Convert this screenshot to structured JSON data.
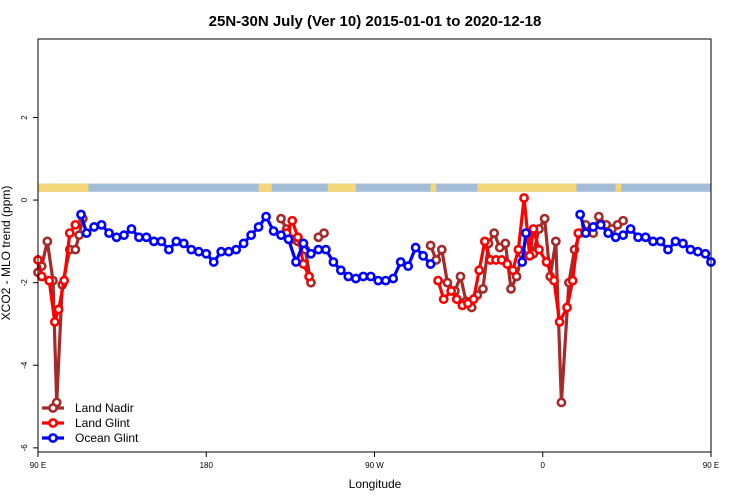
{
  "chart_data": {
    "type": "line",
    "title": "25N-30N July (Ver 10)   2015-01-01 to 2020-12-18",
    "xlabel": "Longitude",
    "ylabel": "XCO2 - MLO trend (ppm)",
    "xlim": [
      90,
      450
    ],
    "ylim": [
      -6.1,
      3.9
    ],
    "x_ticks": [
      {
        "value": 90,
        "label": "90 E"
      },
      {
        "value": 180,
        "label": "180"
      },
      {
        "value": 270,
        "label": "90 W"
      },
      {
        "value": 360,
        "label": "0"
      },
      {
        "value": 450,
        "label": "90 E"
      },
      {
        "value": 540,
        "label": "180"
      }
    ],
    "y_ticks": [
      {
        "value": -6,
        "label": "-6"
      },
      {
        "value": -4,
        "label": "-4"
      },
      {
        "value": -2,
        "label": "-2"
      },
      {
        "value": 0,
        "label": "0"
      },
      {
        "value": 2,
        "label": "2"
      }
    ],
    "legend_position": "bottom-left",
    "land_ocean_strip": {
      "y_range": [
        0.2,
        0.4
      ],
      "land_color": "#f5d67a",
      "ocean_color": "#a3bcd8",
      "land_segments": [
        [
          90,
          117
        ],
        [
          208,
          215
        ],
        [
          245,
          260
        ],
        [
          300,
          303
        ],
        [
          325,
          378
        ],
        [
          399,
          402
        ]
      ]
    },
    "series": [
      {
        "name": "Land Nadir",
        "color": "#a52a2a",
        "segments": [
          {
            "x": [
              90,
              92,
              95,
              98,
              100,
              103,
              107,
              110,
              112,
              114
            ],
            "y": [
              -1.75,
              -1.6,
              -1.0,
              -1.95,
              -4.9,
              -2.05,
              -1.2,
              -1.2,
              -0.85,
              -0.45
            ]
          },
          {
            "x": [
              220,
              223,
              226,
              229,
              233,
              236
            ],
            "y": [
              -0.45,
              -0.7,
              -0.95,
              -1.0,
              -1.2,
              -2.0
            ]
          },
          {
            "x": [
              240,
              243
            ],
            "y": [
              -0.9,
              -0.8
            ]
          },
          {
            "x": [
              300,
              303,
              306,
              309,
              313,
              316,
              319,
              322,
              325,
              328,
              331,
              334,
              337,
              340,
              343,
              346,
              349,
              352,
              355,
              358,
              361,
              364,
              367,
              370,
              374,
              377,
              380,
              383,
              387,
              390,
              394,
              397,
              400,
              403
            ],
            "y": [
              -1.1,
              -1.45,
              -1.2,
              -2.0,
              -2.2,
              -1.85,
              -2.45,
              -2.6,
              -2.3,
              -2.15,
              -1.05,
              -0.8,
              -1.15,
              -1.05,
              -2.15,
              -1.85,
              -1.3,
              -0.8,
              -1.3,
              -0.7,
              -0.45,
              -1.85,
              -1.0,
              -4.9,
              -2.0,
              -1.2,
              -0.8,
              -0.6,
              -0.8,
              -0.4,
              -0.6,
              -0.7,
              -0.6,
              -0.5
            ]
          }
        ]
      },
      {
        "name": "Land Glint",
        "color": "#ff0000",
        "segments": [
          {
            "x": [
              90,
              92,
              96,
              99,
              101,
              104,
              107,
              110
            ],
            "y": [
              -1.45,
              -1.85,
              -1.95,
              -2.95,
              -2.65,
              -1.95,
              -0.8,
              -0.6
            ]
          },
          {
            "x": [
              223,
              226,
              229,
              232,
              235
            ],
            "y": [
              -0.8,
              -0.5,
              -0.9,
              -1.55,
              -1.85
            ]
          },
          {
            "x": [
              304,
              307,
              311,
              314,
              317,
              320,
              323,
              326,
              329,
              332,
              335,
              338,
              341,
              344,
              347,
              350,
              353,
              355,
              358,
              362,
              366,
              369,
              373,
              376,
              379
            ],
            "y": [
              -1.95,
              -2.4,
              -2.2,
              -2.4,
              -2.55,
              -2.5,
              -2.4,
              -1.7,
              -1.0,
              -1.45,
              -1.45,
              -1.45,
              -1.55,
              -1.7,
              -1.2,
              0.05,
              -1.35,
              -0.7,
              -1.2,
              -1.5,
              -1.95,
              -2.95,
              -2.6,
              -1.95,
              -0.8
            ]
          }
        ]
      },
      {
        "name": "Ocean Glint",
        "color": "#0000ff",
        "segments": [
          {
            "x": [
              113,
              116,
              120,
              124,
              128,
              132,
              136,
              140,
              144,
              148,
              152,
              156,
              160,
              164,
              168,
              172,
              176,
              180,
              184,
              188,
              192,
              196,
              200,
              204,
              208,
              212,
              216,
              220,
              224,
              228,
              232,
              236,
              240,
              244,
              248,
              252,
              256,
              260,
              264,
              268,
              272,
              276,
              280,
              284,
              288,
              292,
              296,
              300
            ],
            "y": [
              -0.35,
              -0.8,
              -0.65,
              -0.6,
              -0.8,
              -0.9,
              -0.85,
              -0.7,
              -0.9,
              -0.9,
              -1.0,
              -1.0,
              -1.2,
              -1.0,
              -1.05,
              -1.2,
              -1.25,
              -1.3,
              -1.5,
              -1.25,
              -1.25,
              -1.2,
              -1.05,
              -0.85,
              -0.65,
              -0.4,
              -0.75,
              -0.85,
              -0.95,
              -1.5,
              -1.05,
              -1.3,
              -1.2,
              -1.2,
              -1.5,
              -1.7,
              -1.85,
              -1.9,
              -1.85,
              -1.85,
              -1.95,
              -1.95,
              -1.9,
              -1.5,
              -1.6,
              -1.15,
              -1.35,
              -1.55
            ]
          },
          {
            "x": [
              349,
              351
            ],
            "y": [
              -1.5,
              -0.8
            ]
          },
          {
            "x": [
              380,
              383,
              387,
              391,
              395,
              399,
              403,
              407,
              411,
              415,
              419,
              423,
              427,
              431,
              435,
              439,
              443,
              447,
              450
            ],
            "y": [
              -0.35,
              -0.8,
              -0.65,
              -0.6,
              -0.8,
              -0.9,
              -0.85,
              -0.7,
              -0.9,
              -0.9,
              -1.0,
              -1.0,
              -1.2,
              -1.0,
              -1.05,
              -1.2,
              -1.25,
              -1.3,
              -1.5
            ]
          }
        ]
      }
    ]
  }
}
